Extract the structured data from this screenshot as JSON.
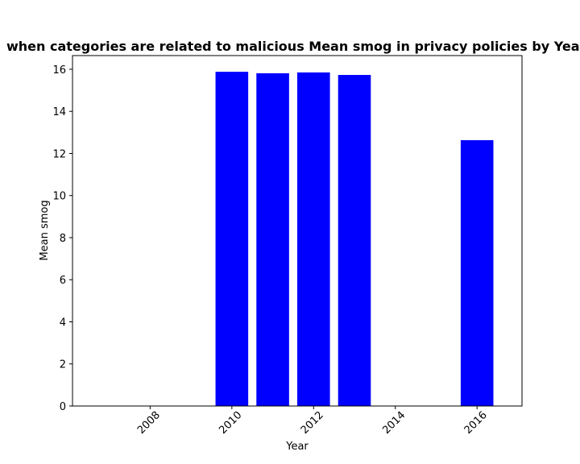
{
  "chart_data": {
    "type": "bar",
    "title": "Mean smog in privacy policies by Year when categories are related to malicious",
    "title_visible": "when categories are related to malicious Mean smog in privacy policies by Year",
    "xlabel": "Year",
    "ylabel": "Mean smog",
    "x": [
      2010,
      2011,
      2012,
      2013,
      2016
    ],
    "values": [
      15.88,
      15.81,
      15.85,
      15.73,
      12.63
    ],
    "xlim": [
      2006.1,
      2017.1
    ],
    "ylim": [
      0,
      16.65
    ],
    "xticks": [
      2008,
      2010,
      2012,
      2014,
      2016
    ],
    "yticks": [
      0,
      2,
      4,
      6,
      8,
      10,
      12,
      14,
      16
    ],
    "bar_color": "#0000ff",
    "grid": false
  }
}
